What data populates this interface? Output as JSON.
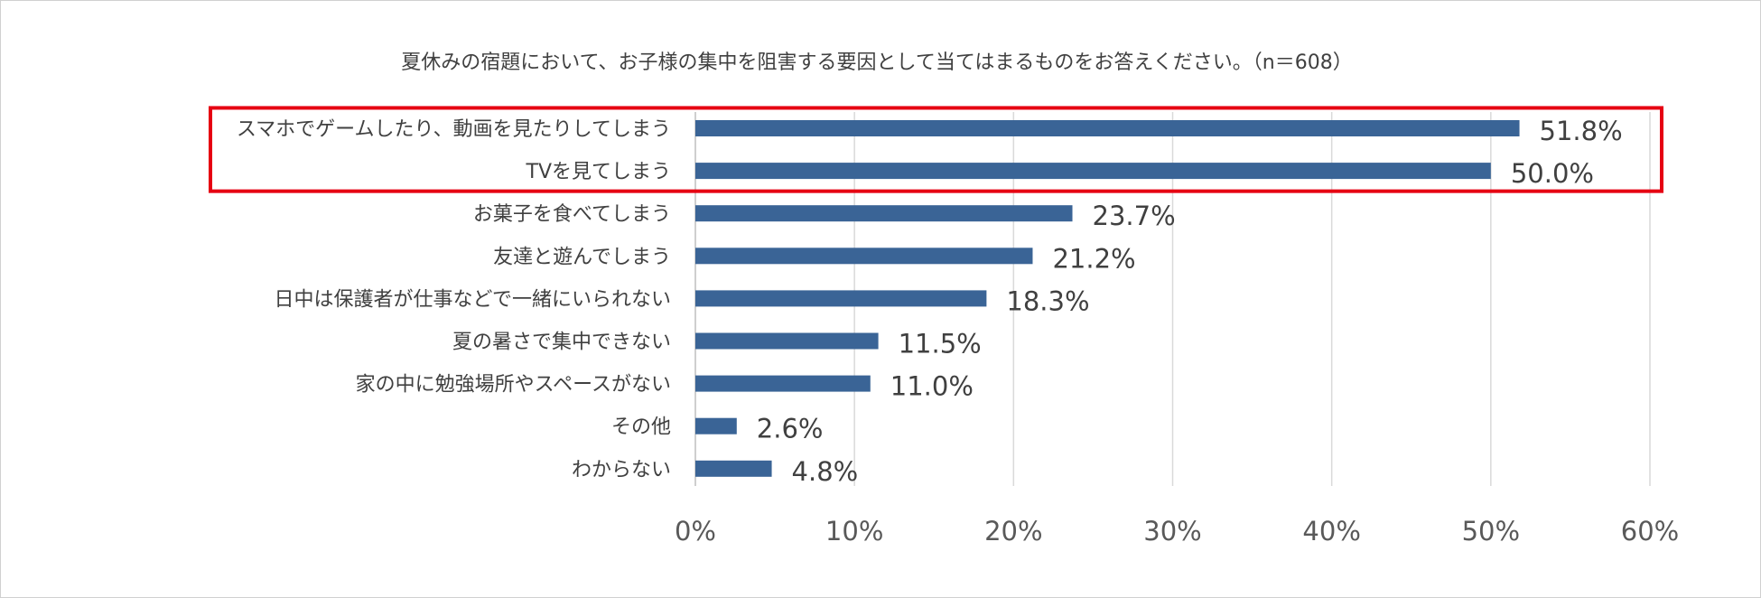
{
  "chart_data": {
    "type": "bar",
    "orientation": "horizontal",
    "title": "夏休みの宿題において、お子様の集中を阻害する要因として当てはまるものをお答えください。（n＝608）",
    "categories": [
      "スマホでゲームしたり、動画を見たりしてしまう",
      "TVを見てしまう",
      "お菓子を食べてしまう",
      "友達と遊んでしまう",
      "日中は保護者が仕事などで一緒にいられない",
      "夏の暑さで集中できない",
      "家の中に勉強場所やスペースがない",
      "その他",
      "わからない"
    ],
    "values": [
      51.8,
      50.0,
      23.7,
      21.2,
      18.3,
      11.5,
      11.0,
      2.6,
      4.8
    ],
    "value_labels": [
      "51.8%",
      "50.0%",
      "23.7%",
      "21.2%",
      "18.3%",
      "11.5%",
      "11.0%",
      "2.6%",
      "4.8%"
    ],
    "xlim": [
      0,
      60
    ],
    "x_ticks": [
      0,
      10,
      20,
      30,
      40,
      50,
      60
    ],
    "x_tick_labels": [
      "0%",
      "10%",
      "20%",
      "30%",
      "40%",
      "50%",
      "60%"
    ],
    "xlabel": "",
    "ylabel": "",
    "grid": true,
    "highlight": {
      "categories": [
        0,
        1
      ],
      "color": "#e60012"
    },
    "bar_color": "#3a6496",
    "grid_color": "#d9d9d9"
  }
}
